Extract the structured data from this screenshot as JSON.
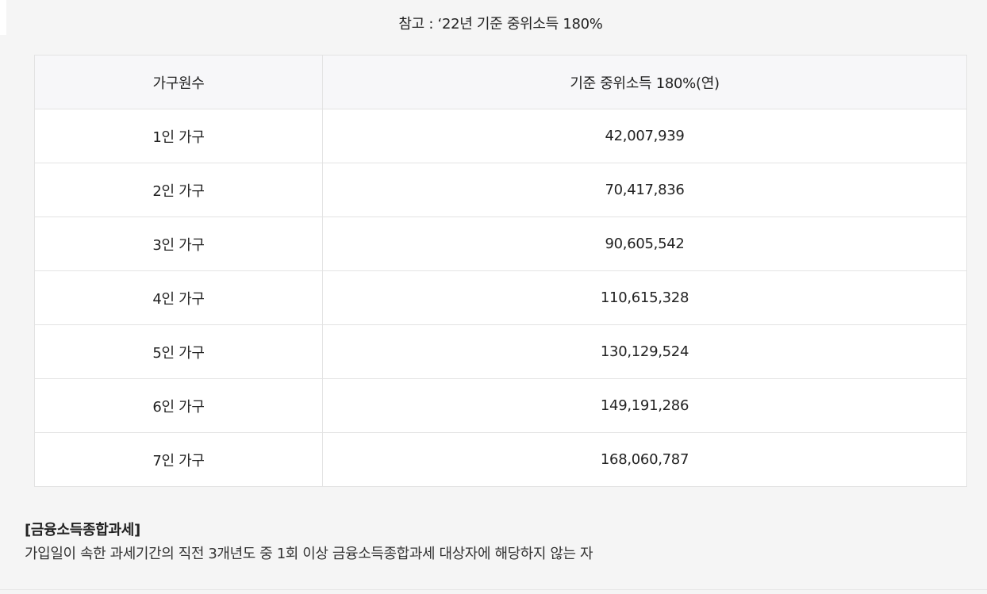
{
  "caption": "참고 : ‘22년 기준 중위소득 180%",
  "table": {
    "headers": [
      "가구원수",
      "기준 중위소득 180%(연)"
    ],
    "rows": [
      [
        "1인 가구",
        "42,007,939"
      ],
      [
        "2인 가구",
        "70,417,836"
      ],
      [
        "3인 가구",
        "90,605,542"
      ],
      [
        "4인 가구",
        "110,615,328"
      ],
      [
        "5인 가구",
        "130,129,524"
      ],
      [
        "6인 가구",
        "149,191,286"
      ],
      [
        "7인 가구",
        "168,060,787"
      ]
    ]
  },
  "section": {
    "title": "[금융소득종합과세]",
    "description": "가입일이 속한 과세기간의 직전 3개년도 중 1회 이상 금융소득종합과세 대상자에 해당하지 않는 자"
  }
}
